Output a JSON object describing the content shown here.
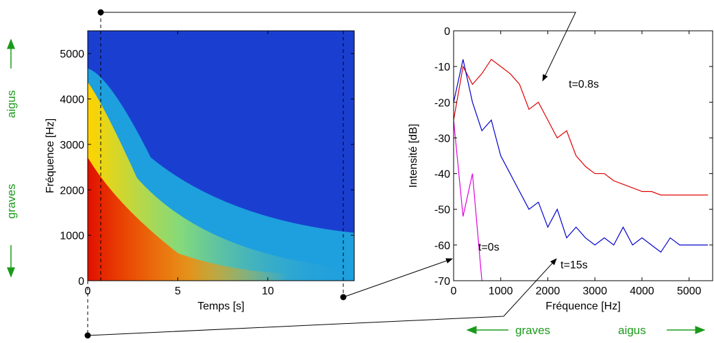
{
  "chart_data": [
    {
      "type": "spectrogram",
      "xlabel": "Temps [s]",
      "ylabel": "Fréquence [Hz]",
      "xlim": [
        0,
        14.8
      ],
      "xticks": [
        0,
        5,
        10
      ],
      "ylim": [
        0,
        5500
      ],
      "yticks": [
        0,
        1000,
        2000,
        3000,
        4000,
        5000
      ],
      "annotations": [
        "aigus",
        "graves"
      ]
    },
    {
      "type": "line",
      "xlabel": "Fréquence [Hz]",
      "ylabel": "Intensité [dB]",
      "xlim": [
        0,
        5500
      ],
      "xticks": [
        0,
        1000,
        2000,
        3000,
        4000,
        5000
      ],
      "ylim": [
        -70,
        0
      ],
      "yticks": [
        -70,
        -60,
        -50,
        -40,
        -30,
        -20,
        -10,
        0
      ],
      "x": [
        0,
        200,
        400,
        600,
        800,
        1000,
        1200,
        1400,
        1600,
        1800,
        2000,
        2200,
        2400,
        2600,
        2800,
        3000,
        3200,
        3400,
        3600,
        3800,
        4000,
        4200,
        4400,
        4600,
        4800,
        5000,
        5200,
        5400
      ],
      "series": [
        {
          "name": "t=0.8s",
          "color": "#e00000",
          "values": [
            -25,
            -10,
            -15,
            -12,
            -8,
            -10,
            -12,
            -15,
            -22,
            -20,
            -25,
            -30,
            -28,
            -35,
            -38,
            -40,
            -40,
            -42,
            -43,
            -44,
            -45,
            -45,
            -46,
            -46,
            -46,
            -46,
            -46,
            -46
          ]
        },
        {
          "name": "t=0s",
          "color": "#0000cc",
          "values": [
            -20,
            -8,
            -20,
            -28,
            -25,
            -35,
            -40,
            -45,
            -50,
            -48,
            -55,
            -50,
            -58,
            -55,
            -58,
            -60,
            -58,
            -60,
            -55,
            -60,
            -58,
            -60,
            -62,
            -58,
            -60,
            -60,
            -60,
            -60
          ]
        },
        {
          "name": "t=15s",
          "color": "#e000e0",
          "values": [
            -25,
            -52,
            -40,
            -70,
            null,
            null,
            null,
            null,
            null,
            null,
            null,
            null,
            null,
            null,
            null,
            null,
            null,
            null,
            null,
            null,
            null,
            null,
            null,
            null,
            null,
            null,
            null,
            null
          ]
        }
      ],
      "annotations": [
        "graves",
        "aigus"
      ]
    }
  ]
}
